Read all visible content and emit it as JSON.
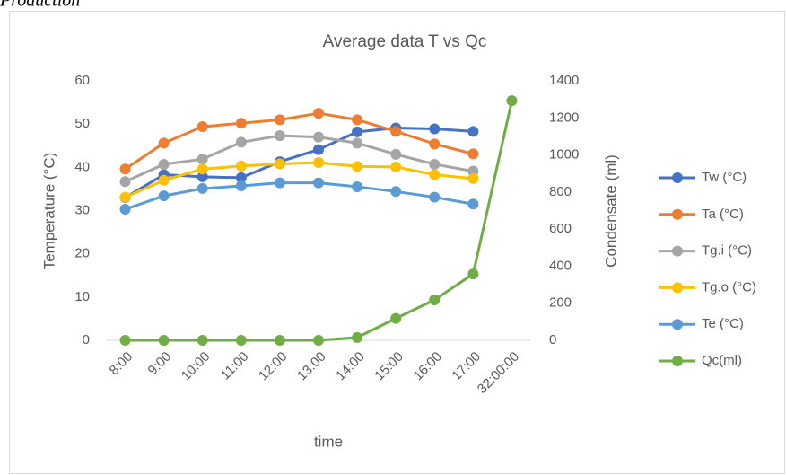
{
  "caption": "Production",
  "chart_data": {
    "type": "line",
    "title": "Average data T vs Qc",
    "x_label": "time",
    "y_label": "Temperature (°C)",
    "y2_label": "Condensate (ml)",
    "categories": [
      "8:00",
      "9:00",
      "10:00",
      "11:00",
      "12:00",
      "13:00",
      "14:00",
      "15:00",
      "16:00",
      "17:00",
      "32:00:00"
    ],
    "series": [
      {
        "name": "Tw (°C)",
        "color": "#4472c4",
        "values": [
          33,
          38.3,
          37.8,
          37.6,
          41.3,
          44.1,
          48.2,
          49.1,
          48.9,
          48.3,
          null
        ]
      },
      {
        "name": "Ta (°C)",
        "color": "#ed7d31",
        "values": [
          39.6,
          45.6,
          49.4,
          50.2,
          51,
          52.5,
          51,
          48.3,
          45.4,
          43.1,
          null
        ]
      },
      {
        "name": "Tg.i (°C)",
        "color": "#a5a5a5",
        "values": [
          36.7,
          40.7,
          41.9,
          45.8,
          47.3,
          47,
          45.6,
          43,
          40.7,
          39.1,
          null
        ]
      },
      {
        "name": "Tg.o (°C)",
        "color": "#ffc000",
        "values": [
          33.1,
          37,
          39.6,
          40.3,
          40.8,
          41.1,
          40.2,
          40.1,
          38.3,
          37.4,
          null
        ]
      },
      {
        "name": "Te (°C)",
        "color": "#5b9bd5",
        "values": [
          30.3,
          33.4,
          35.1,
          35.7,
          36.4,
          36.4,
          35.5,
          34.4,
          33.1,
          31.5,
          null
        ]
      },
      {
        "name": "Qc(ml)",
        "color": "#70ad47",
        "axis": "y2",
        "values": [
          0,
          0,
          0,
          0,
          0,
          0,
          15,
          118,
          218,
          358,
          1293
        ]
      }
    ],
    "ylim": [
      0,
      60
    ],
    "yticks": [
      0,
      10,
      20,
      30,
      40,
      50,
      60
    ],
    "y2lim": [
      0,
      1400
    ],
    "y2ticks": [
      0,
      200,
      400,
      600,
      800,
      1000,
      1200,
      1400
    ],
    "grid": false,
    "legend": "right"
  }
}
